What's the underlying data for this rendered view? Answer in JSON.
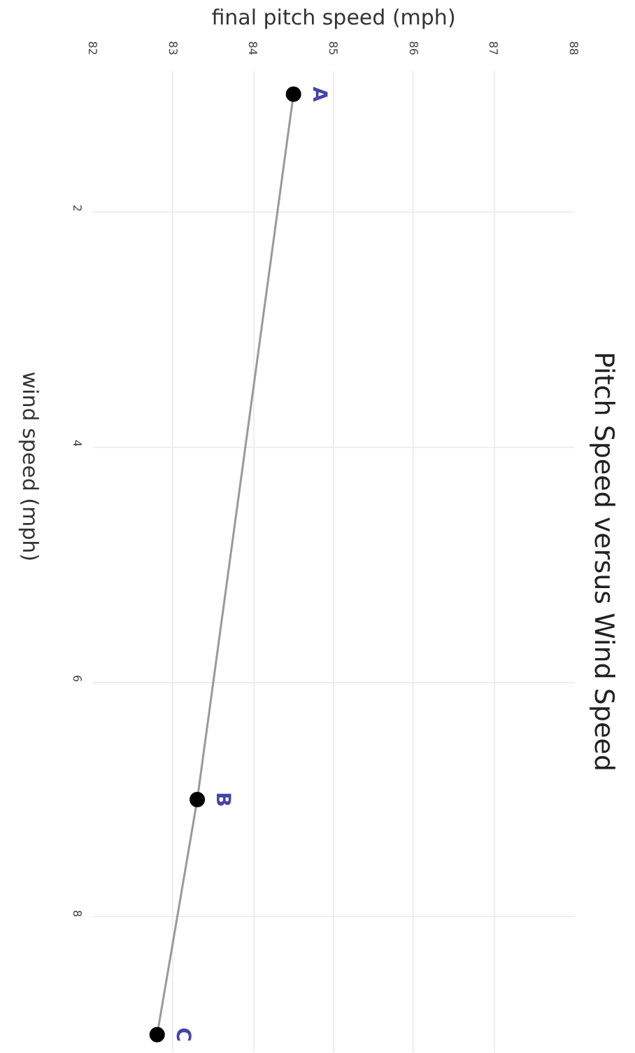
{
  "chart_data": {
    "type": "line",
    "title": "Pitch Speed versus Wind Speed",
    "xlabel": "final pitch speed (mph)",
    "ylabel": "wind speed (mph)",
    "x": [
      84.5,
      83.3,
      82.8
    ],
    "series": [
      {
        "color": "#000000",
        "values": [
          1,
          7,
          9
        ]
      }
    ],
    "xlim": [
      82,
      88
    ],
    "xticks": [
      82,
      83,
      84,
      85,
      86,
      87,
      88
    ],
    "ylim": [
      9.15,
      0.8
    ],
    "yticks": [
      2,
      4,
      6,
      8
    ],
    "grid": true,
    "marker": "circle",
    "annotations": [
      {
        "text": "A",
        "x": 84.5,
        "y": 1
      },
      {
        "text": "B",
        "x": 83.3,
        "y": 7
      },
      {
        "text": "C",
        "x": 82.8,
        "y": 9
      }
    ]
  }
}
